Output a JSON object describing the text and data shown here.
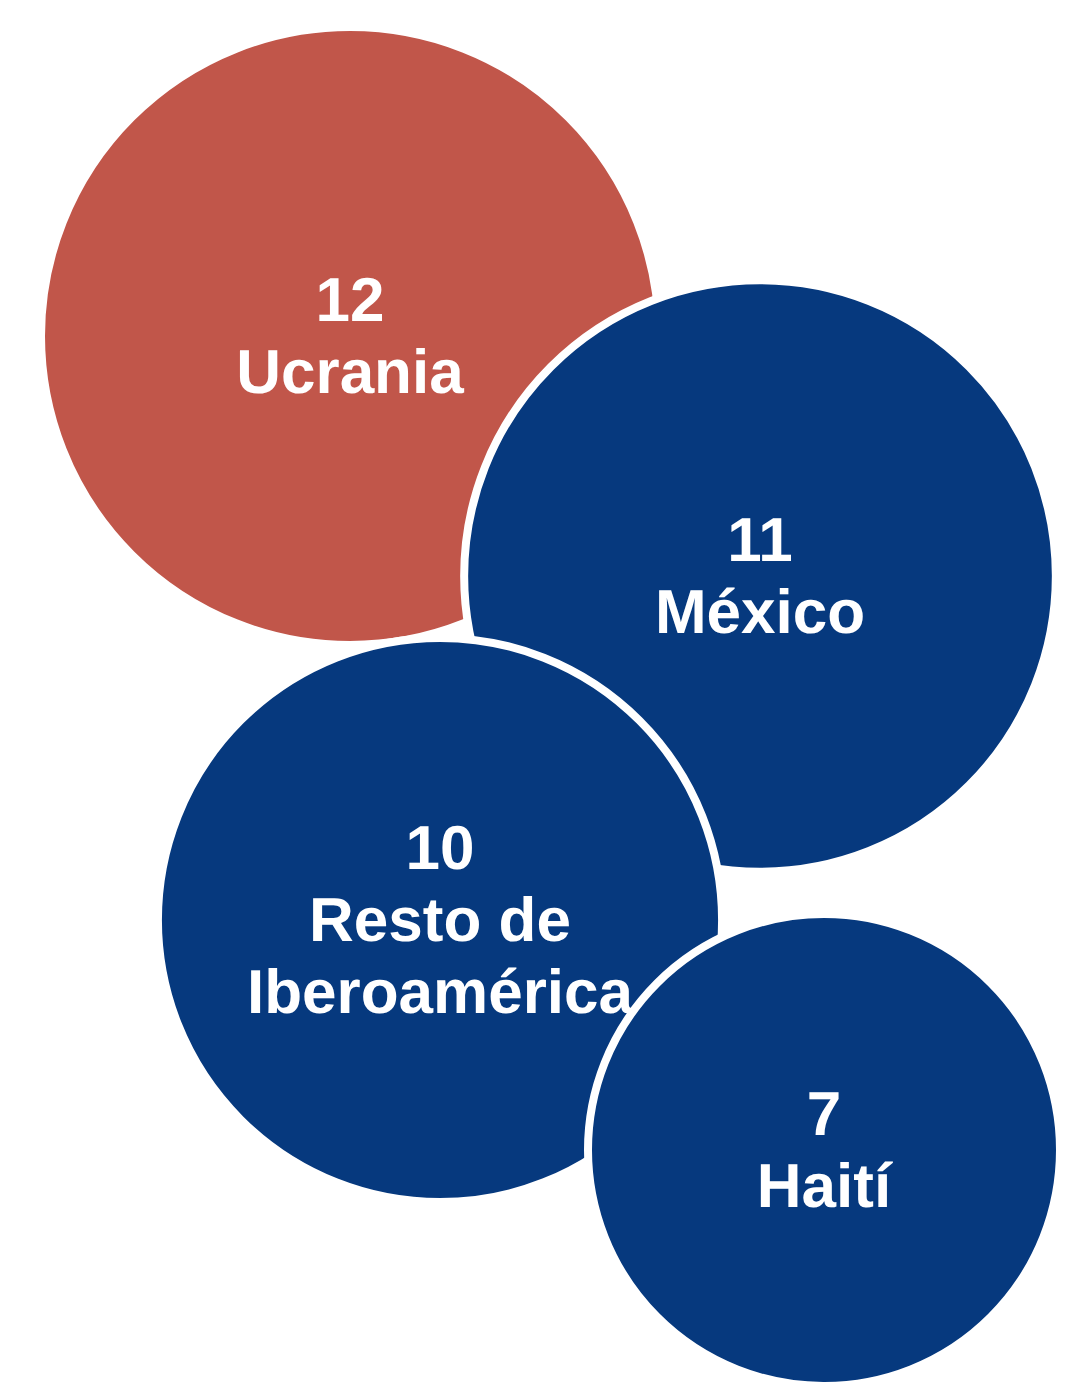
{
  "chart_data": {
    "type": "other",
    "categories": [
      "Ucrania",
      "México",
      "Resto de Iberoamérica",
      "Haití"
    ],
    "values": [
      12,
      11,
      10,
      7
    ],
    "colors": [
      "#c1564a",
      "#06397e",
      "#06397e",
      "#06397e"
    ],
    "data_labels": true
  }
}
